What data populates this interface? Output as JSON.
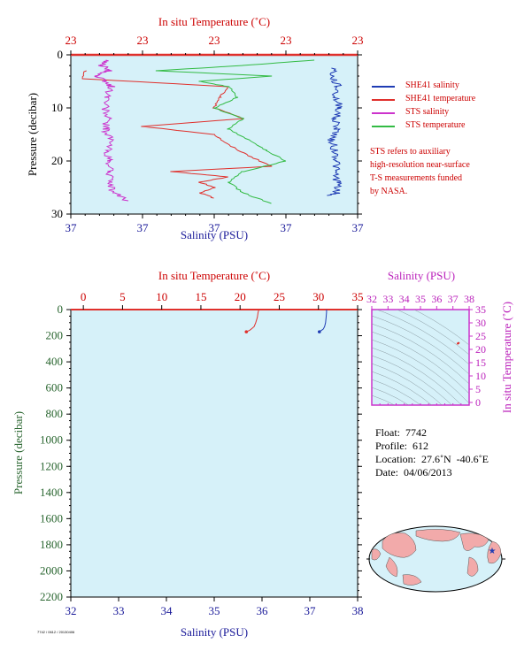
{
  "chart_data": [
    {
      "type": "line",
      "title": "",
      "top_axis_label": "In situ Temperature (˚C)",
      "top_ticks": [
        "23",
        "23",
        "23",
        "23",
        "23"
      ],
      "xlabel": "Salinity (PSU)",
      "bottom_ticks": [
        "37",
        "37",
        "37",
        "37",
        "37"
      ],
      "ylabel": "Pressure (decibar)",
      "y_ticks": [
        0,
        10,
        20,
        30
      ],
      "ylim": [
        30,
        0
      ],
      "colors": {
        "background": "#d6f1f9",
        "sbe_salinity": "#1f3cb4",
        "sbe_temperature": "#e0302c",
        "sts_salinity": "#cc33cc",
        "sts_temperature": "#33bb44"
      },
      "series": [
        {
          "name": "SHE41 salinity",
          "color": "#1f3cb4",
          "pressure": [
            2.5,
            4,
            6,
            8,
            10,
            12,
            14,
            16,
            18,
            20,
            22,
            24,
            26,
            26.5
          ],
          "value_norm": [
            0.92,
            0.91,
            0.93,
            0.92,
            0.94,
            0.92,
            0.93,
            0.91,
            0.92,
            0.93,
            0.92,
            0.93,
            0.93,
            0.9
          ]
        },
        {
          "name": "SHE41 temperature",
          "color": "#e0302c",
          "pressure": [
            3,
            4.5,
            6,
            8,
            10,
            12,
            13.5,
            15,
            17,
            19,
            21,
            22,
            23,
            24,
            25,
            26,
            27
          ],
          "value_norm": [
            0.05,
            0.04,
            0.55,
            0.52,
            0.5,
            0.6,
            0.25,
            0.5,
            0.55,
            0.62,
            0.7,
            0.35,
            0.55,
            0.45,
            0.5,
            0.45,
            0.5
          ]
        },
        {
          "name": "STS salinity",
          "color": "#cc33cc",
          "pressure": [
            1,
            2,
            3,
            4,
            5,
            6,
            8,
            10,
            12,
            14,
            16,
            18,
            20,
            22,
            24,
            26,
            27.5
          ],
          "value_norm": [
            0.12,
            0.11,
            0.13,
            0.09,
            0.12,
            0.14,
            0.13,
            0.12,
            0.13,
            0.12,
            0.14,
            0.13,
            0.13,
            0.14,
            0.13,
            0.15,
            0.2
          ]
        },
        {
          "name": "STS temperature",
          "color": "#33bb44",
          "pressure": [
            1,
            2,
            3,
            4,
            5,
            6,
            8,
            10,
            12,
            14,
            16,
            18,
            20,
            22,
            24,
            26,
            28
          ],
          "value_norm": [
            0.85,
            0.6,
            0.3,
            0.7,
            0.45,
            0.55,
            0.58,
            0.5,
            0.6,
            0.55,
            0.62,
            0.68,
            0.75,
            0.6,
            0.55,
            0.6,
            0.7
          ]
        }
      ]
    },
    {
      "type": "line",
      "title": "",
      "top_axis_label": "In situ Temperature (˚C)",
      "top_ticks": [
        0,
        5,
        10,
        15,
        20,
        25,
        30,
        35
      ],
      "xlabel": "Salinity (PSU)",
      "bottom_ticks": [
        32,
        33,
        34,
        35,
        36,
        37,
        38
      ],
      "ylabel": "Pressure (decibar)",
      "y_ticks": [
        0,
        200,
        400,
        600,
        800,
        1000,
        1200,
        1400,
        1600,
        1800,
        2000,
        2200
      ],
      "ylim": [
        2200,
        0
      ],
      "xlim_temperature": [
        -1.6,
        35
      ],
      "xlim_salinity": [
        32,
        38
      ],
      "series": [
        {
          "name": "SBE temperature",
          "color": "#e0302c",
          "pressure": [
            0,
            20,
            60,
            100,
            130,
            150,
            160,
            170
          ],
          "temperature": [
            22.4,
            22.3,
            22.2,
            22.0,
            21.8,
            21.4,
            21.2,
            20.8
          ]
        },
        {
          "name": "SBE salinity",
          "color": "#1f3cb4",
          "pressure": [
            0,
            20,
            60,
            100,
            130,
            150,
            160,
            170
          ],
          "salinity": [
            37.35,
            37.35,
            37.34,
            37.33,
            37.31,
            37.28,
            37.24,
            37.2
          ]
        }
      ]
    },
    {
      "type": "scatter",
      "title": "",
      "top_axis_label": "Salinity (PSU)",
      "top_ticks": [
        32,
        33,
        34,
        35,
        36,
        37,
        38
      ],
      "ylabel": "In situ Temperature (˚C)",
      "y_ticks": [
        0,
        5,
        10,
        15,
        20,
        25,
        30,
        35
      ],
      "xlim": [
        32,
        38
      ],
      "ylim": [
        -1,
        35
      ],
      "points": [
        {
          "salinity": 37.3,
          "temperature": 22.2
        },
        {
          "salinity": 37.35,
          "temperature": 22.4
        }
      ]
    }
  ],
  "legend": {
    "items": [
      {
        "label": "SHE41 salinity",
        "color": "#1f3cb4"
      },
      {
        "label": "SHE41 temperature",
        "color": "#e0302c"
      },
      {
        "label": "STS salinity",
        "color": "#cc33cc"
      },
      {
        "label": "STS temperature",
        "color": "#33bb44"
      }
    ]
  },
  "note_lines": [
    "STS refers to auxiliary",
    "high-resolution near-surface",
    "T-S measurements funded",
    "by NASA."
  ],
  "info": {
    "float": "Float:  7742",
    "profile": "Profile:  612",
    "location": "Location:  27.6˚N  -40.6˚E",
    "date": "Date:  04/06/2013"
  },
  "map": {
    "float_latitude": 27.6,
    "float_longitude": -40.6,
    "marker_color": "#1f3cb4",
    "land_color": "#f2aaaa",
    "ocean_color": "#d6f1f9"
  },
  "footer_text": "7742 / 0612 / 20130406"
}
